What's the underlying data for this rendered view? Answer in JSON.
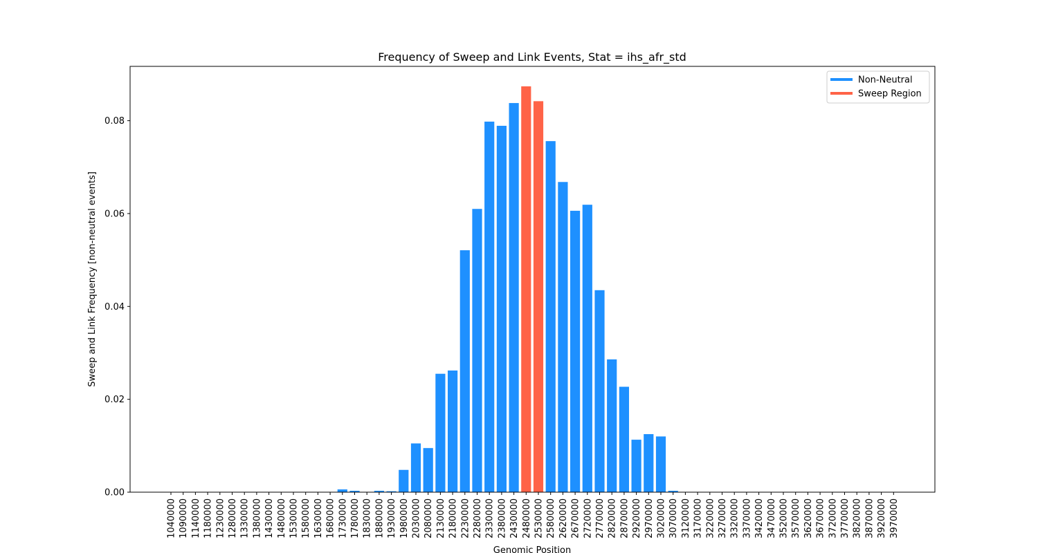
{
  "chart_data": {
    "type": "bar",
    "title": "Frequency of Sweep and Link Events, Stat = ihs_afr_std",
    "xlabel": "Genomic Position",
    "ylabel": "Sweep and Link Frequency [non-neutral events]",
    "ylim": [
      0,
      0.0917
    ],
    "yticks": [
      "0.00",
      "0.02",
      "0.04",
      "0.06",
      "0.08"
    ],
    "categories": [
      "1040000",
      "1090000",
      "1140000",
      "1180000",
      "1230000",
      "1280000",
      "1330000",
      "1380000",
      "1430000",
      "1480000",
      "1530000",
      "1580000",
      "1630000",
      "1680000",
      "1730000",
      "1780000",
      "1830000",
      "1880000",
      "1930000",
      "1980000",
      "2030000",
      "2080000",
      "2130000",
      "2180000",
      "2230000",
      "2280000",
      "2330000",
      "2380000",
      "2430000",
      "2480000",
      "2530000",
      "2580000",
      "2620000",
      "2670000",
      "2720000",
      "2770000",
      "2820000",
      "2870000",
      "2920000",
      "2970000",
      "3020000",
      "3070000",
      "3120000",
      "3170000",
      "3220000",
      "3270000",
      "3320000",
      "3370000",
      "3420000",
      "3470000",
      "3520000",
      "3570000",
      "3620000",
      "3670000",
      "3720000",
      "3770000",
      "3820000",
      "3870000",
      "3920000",
      "3970000"
    ],
    "values": [
      0,
      0,
      0,
      0,
      0,
      0,
      0,
      0,
      0,
      0,
      0,
      0,
      0,
      0,
      0.0006,
      0.0003,
      0,
      0.0003,
      0.0002,
      0.0048,
      0.0105,
      0.0095,
      0.0255,
      0.0262,
      0.0521,
      0.061,
      0.0798,
      0.0789,
      0.0838,
      0.0874,
      0.0842,
      0.0756,
      0.0668,
      0.0606,
      0.0619,
      0.0435,
      0.0286,
      0.0227,
      0.0113,
      0.0125,
      0.012,
      0.0003,
      0,
      0,
      0,
      0,
      0,
      0,
      0,
      0,
      0,
      0,
      0,
      0,
      0,
      0,
      0,
      0,
      0,
      0
    ],
    "series_assignment": [
      "Non-Neutral",
      "Non-Neutral",
      "Non-Neutral",
      "Non-Neutral",
      "Non-Neutral",
      "Non-Neutral",
      "Non-Neutral",
      "Non-Neutral",
      "Non-Neutral",
      "Non-Neutral",
      "Non-Neutral",
      "Non-Neutral",
      "Non-Neutral",
      "Non-Neutral",
      "Non-Neutral",
      "Non-Neutral",
      "Non-Neutral",
      "Non-Neutral",
      "Non-Neutral",
      "Non-Neutral",
      "Non-Neutral",
      "Non-Neutral",
      "Non-Neutral",
      "Non-Neutral",
      "Non-Neutral",
      "Non-Neutral",
      "Non-Neutral",
      "Non-Neutral",
      "Non-Neutral",
      "Sweep Region",
      "Sweep Region",
      "Non-Neutral",
      "Non-Neutral",
      "Non-Neutral",
      "Non-Neutral",
      "Non-Neutral",
      "Non-Neutral",
      "Non-Neutral",
      "Non-Neutral",
      "Non-Neutral",
      "Non-Neutral",
      "Non-Neutral",
      "Non-Neutral",
      "Non-Neutral",
      "Non-Neutral",
      "Non-Neutral",
      "Non-Neutral",
      "Non-Neutral",
      "Non-Neutral",
      "Non-Neutral",
      "Non-Neutral",
      "Non-Neutral",
      "Non-Neutral",
      "Non-Neutral",
      "Non-Neutral",
      "Non-Neutral",
      "Non-Neutral",
      "Non-Neutral",
      "Non-Neutral",
      "Non-Neutral"
    ],
    "series": [
      {
        "name": "Non-Neutral",
        "color": "#1e90ff"
      },
      {
        "name": "Sweep Region",
        "color": "#ff6347"
      }
    ],
    "legend_position": "top-right",
    "grid": false
  }
}
